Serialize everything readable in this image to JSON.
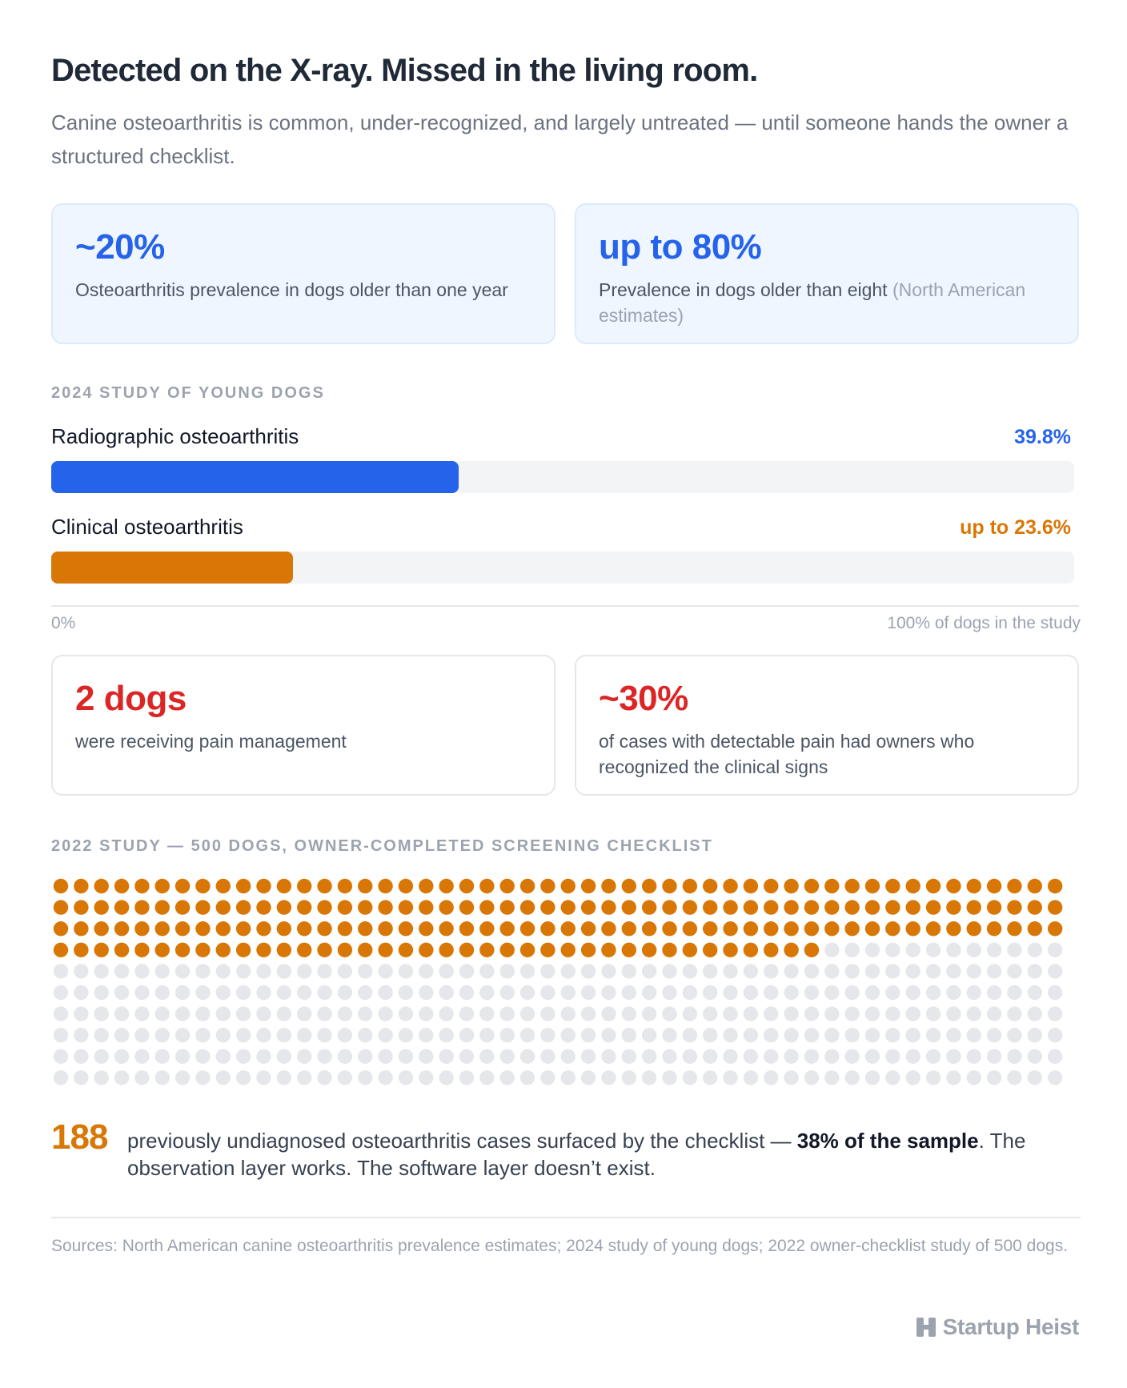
{
  "title": "Detected on the X-ray. Missed in the living room.",
  "subtitle": "Canine osteoarthritis is common, under-recognized, and largely untreated — until someone hands the owner a structured checklist.",
  "stat_cards_top": [
    {
      "value": "~20%",
      "description": "Osteoarthritis prevalence in dogs older than one year",
      "note": ""
    },
    {
      "value": "up to 80%",
      "description": "Prevalence in dogs older than eight ",
      "note": "(North American estimates)"
    }
  ],
  "section_2024": "2024 STUDY OF YOUNG DOGS",
  "section_2022": "2022 STUDY — 500 DOGS, OWNER-COMPLETED SCREENING CHECKLIST",
  "chart_data": [
    {
      "type": "bar",
      "orientation": "horizontal",
      "title": "2024 STUDY OF YOUNG DOGS",
      "categories": [
        "Radiographic osteoarthritis",
        "Clinical osteoarthritis"
      ],
      "values": [
        39.8,
        23.6
      ],
      "value_labels": [
        "39.8%",
        "up to 23.6%"
      ],
      "colors": [
        "#2563eb",
        "#d97706"
      ],
      "xlim": [
        0,
        100
      ],
      "axis_min_label": "0%",
      "axis_max_label": "100% of dogs in the study"
    },
    {
      "type": "waffle",
      "title": "2022 STUDY — 500 DOGS, OWNER-COMPLETED SCREENING CHECKLIST",
      "total": 500,
      "highlighted": 188,
      "columns": 50,
      "colors": {
        "highlighted": "#d97706",
        "rest": "#e5e7eb"
      }
    }
  ],
  "stat_cards_mid": [
    {
      "value": "2 dogs",
      "description": "were receiving pain management"
    },
    {
      "value": "~30%",
      "description": "of cases with detectable pain had owners who recognized the clinical signs"
    }
  ],
  "finding": {
    "number": "188",
    "text_before": "previously undiagnosed osteoarthritis cases surfaced by the checklist — ",
    "text_bold": "38% of the sample",
    "text_after": ". The observation layer works. The software layer doesn’t exist."
  },
  "sources": "Sources: North American canine osteoarthritis prevalence estimates; 2024 study of young dogs; 2022 owner-checklist study of 500 dogs.",
  "brand": {
    "name": "Startup Heist",
    "icon": "startup-heist-logo-icon"
  }
}
